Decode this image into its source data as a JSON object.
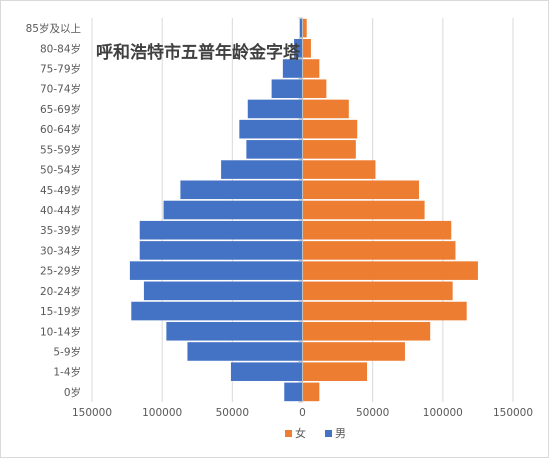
{
  "chart_data": {
    "type": "bar",
    "orientation": "horizontal",
    "layout": "population-pyramid",
    "title": "呼和浩特市五普年龄金字塔",
    "categories": [
      "0岁",
      "1-4岁",
      "5-9岁",
      "10-14岁",
      "15-19岁",
      "20-24岁",
      "25-29岁",
      "30-34岁",
      "35-39岁",
      "40-44岁",
      "45-49岁",
      "50-54岁",
      "55-59岁",
      "60-64岁",
      "65-69岁",
      "70-74岁",
      "75-79岁",
      "80-84岁",
      "85岁及以上"
    ],
    "series": [
      {
        "name": "女",
        "color": "#ed7d31",
        "side": "right",
        "values": [
          12000,
          46000,
          73000,
          91000,
          117000,
          107000,
          125000,
          109000,
          106000,
          87000,
          83000,
          52000,
          38000,
          39000,
          33000,
          17000,
          12000,
          6000,
          3000
        ]
      },
      {
        "name": "男",
        "color": "#4472c4",
        "side": "left",
        "values": [
          13000,
          51000,
          82000,
          97000,
          122000,
          113000,
          123000,
          116000,
          116000,
          99000,
          87000,
          58000,
          40000,
          45000,
          39000,
          22000,
          14000,
          6000,
          2000
        ]
      }
    ],
    "xaxis": {
      "range": [
        -150000,
        150000
      ],
      "ticks": [
        -150000,
        -100000,
        -50000,
        0,
        50000,
        100000,
        150000
      ],
      "tick_labels": [
        "150000",
        "100000",
        "50000",
        "0",
        "50000",
        "100000",
        "150000"
      ]
    },
    "grid": true,
    "legend_position": "bottom"
  }
}
